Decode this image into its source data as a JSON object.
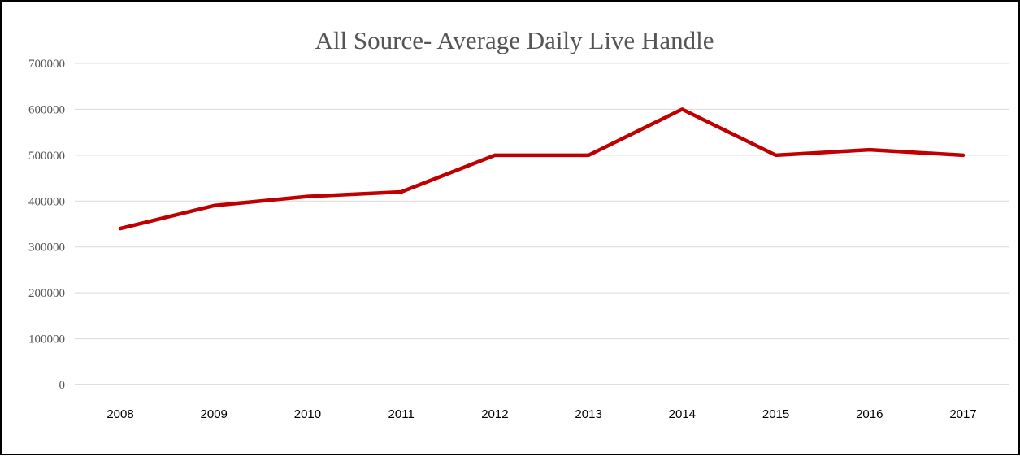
{
  "chart_data": {
    "type": "line",
    "title": "All Source- Average Daily Live Handle",
    "xlabel": "",
    "ylabel": "",
    "categories": [
      "2008",
      "2009",
      "2010",
      "2011",
      "2012",
      "2013",
      "2014",
      "2015",
      "2016",
      "2017"
    ],
    "series": [
      {
        "values": [
          340000,
          390000,
          410000,
          420000,
          500000,
          500000,
          600000,
          500000,
          512000,
          500000
        ],
        "color": "#c00000"
      }
    ],
    "ylim": [
      0,
      700000
    ],
    "yticks": [
      "0",
      "100000",
      "200000",
      "300000",
      "400000",
      "500000",
      "600000",
      "700000"
    ],
    "grid": true,
    "legend": "none"
  }
}
